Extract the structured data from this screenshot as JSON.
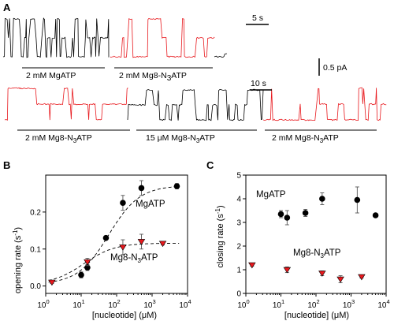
{
  "panel_a": {
    "letter": "A",
    "scale_time_1": "5 s",
    "scale_current": "0.5 pA",
    "scale_time_2": "10 s",
    "label_mgatp": "2 mM MgATP",
    "label_mg8_top": "2 mM Mg8-N",
    "label_mg8_top_sub": "3",
    "label_mg8_top_end": "ATP",
    "label_row2_1": "2 mM Mg8-N",
    "label_row2_1_sub": "3",
    "label_row2_1_end": "ATP",
    "label_row2_2": "15 μM Mg8-N",
    "label_row2_2_sub": "3",
    "label_row2_2_end": "ATP",
    "label_row2_3": "2 mM Mg8-N",
    "label_row2_3_sub": "3",
    "label_row2_3_end": "ATP",
    "colors": {
      "mgatp_trace": "#000000",
      "mg8_trace": "#e8181d"
    }
  },
  "chart_data": [
    {
      "type": "scatter",
      "panel": "B",
      "ylabel": "opening rate (s",
      "ylabel_sup": "-1",
      "ylabel_end": ")",
      "xlabel": "[nucleotide] (μM)",
      "xscale": "log",
      "xlim": [
        1,
        10000
      ],
      "ylim": [
        -0.02,
        0.3
      ],
      "xtick_labels": [
        "10",
        "10",
        "10",
        "10",
        "10"
      ],
      "xtick_exps": [
        "0",
        "1",
        "2",
        "3",
        "4"
      ],
      "ytick_labels": [
        "0.0",
        "0.1",
        "0.2"
      ],
      "yticks": [
        0.0,
        0.1,
        0.2
      ],
      "series": [
        {
          "name": "MgATP",
          "marker": "circle",
          "color": "#000000",
          "x": [
            10,
            15,
            50,
            150,
            500,
            5000
          ],
          "y": [
            0.03,
            0.05,
            0.13,
            0.225,
            0.265,
            0.27
          ],
          "err": [
            0.008,
            0.008,
            0.005,
            0.02,
            0.02,
            0.007
          ]
        },
        {
          "name": "Mg8-N3ATP",
          "marker": "triangle-down",
          "color": "#e8181d",
          "x": [
            1.5,
            15,
            150,
            500,
            2000
          ],
          "y": [
            0.01,
            0.065,
            0.105,
            0.12,
            0.115
          ],
          "err": [
            0.003,
            0.01,
            0.02,
            0.02,
            0.004
          ]
        }
      ],
      "fits": [
        {
          "series": "MgATP",
          "style": "dashed",
          "bottom": 0.005,
          "top": 0.272,
          "k": 60
        },
        {
          "series": "Mg8-N3ATP",
          "style": "dashed",
          "bottom": 0.005,
          "top": 0.116,
          "k": 12
        }
      ],
      "series_label_1": "MgATP",
      "series_label_2": "Mg8-N",
      "series_label_2_sub": "3",
      "series_label_2_end": "ATP",
      "letter": "B"
    },
    {
      "type": "scatter",
      "panel": "C",
      "ylabel": "closing rate (s",
      "ylabel_sup": "-1",
      "ylabel_end": ")",
      "xlabel": "[nucleotide] (μM)",
      "xscale": "log",
      "xlim": [
        1,
        10000
      ],
      "ylim": [
        0,
        5
      ],
      "xtick_labels": [
        "10",
        "10",
        "10",
        "10",
        "10"
      ],
      "xtick_exps": [
        "0",
        "1",
        "2",
        "3",
        "4"
      ],
      "ytick_labels": [
        "0",
        "1",
        "2",
        "3",
        "4",
        "5"
      ],
      "yticks": [
        0,
        1,
        2,
        3,
        4,
        5
      ],
      "series": [
        {
          "name": "MgATP",
          "marker": "circle",
          "color": "#000000",
          "x": [
            10,
            15,
            50,
            150,
            1500,
            5000
          ],
          "y": [
            3.35,
            3.2,
            3.4,
            4.0,
            3.95,
            3.3
          ],
          "err": [
            0.15,
            0.3,
            0.15,
            0.25,
            0.55,
            0.08
          ]
        },
        {
          "name": "Mg8-N3ATP",
          "marker": "triangle-down",
          "color": "#e8181d",
          "x": [
            1.5,
            15,
            150,
            500,
            2000
          ],
          "y": [
            1.2,
            1.0,
            0.85,
            0.6,
            0.7
          ],
          "err": [
            0.05,
            0.12,
            0.1,
            0.15,
            0.05
          ]
        }
      ],
      "series_label_1": "MgATP",
      "series_label_2": "Mg8-N",
      "series_label_2_sub": "3",
      "series_label_2_end": "ATP",
      "letter": "C"
    }
  ]
}
